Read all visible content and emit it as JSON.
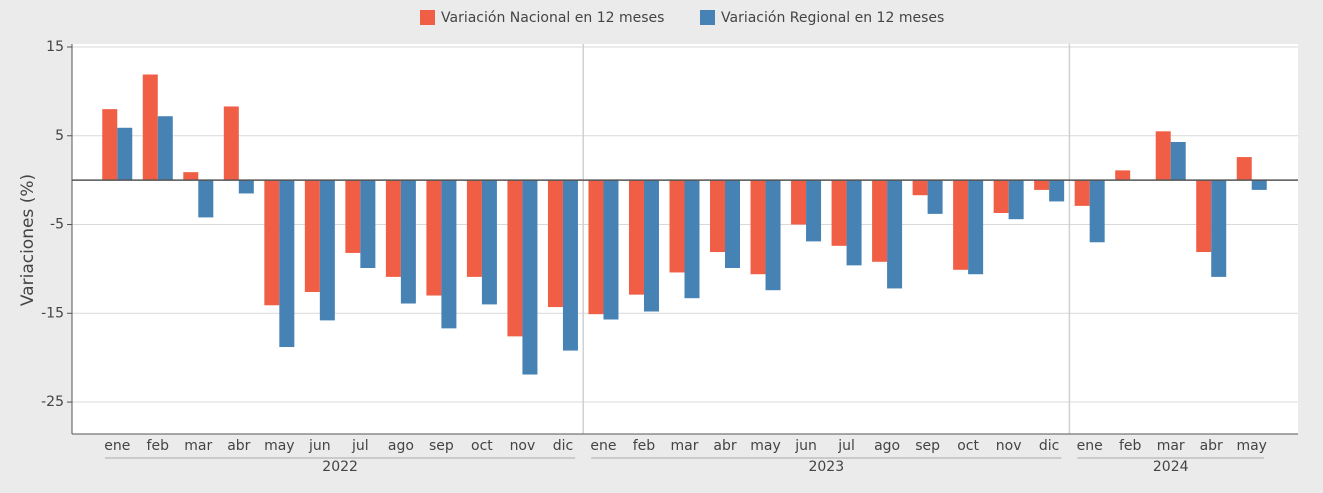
{
  "chart_data": {
    "type": "bar",
    "y_label": "Variaciones (%)",
    "category_groups": [
      {
        "name": "2022",
        "categories": [
          "ene",
          "feb",
          "mar",
          "abr",
          "may",
          "jun",
          "jul",
          "ago",
          "sep",
          "oct",
          "nov",
          "dic"
        ]
      },
      {
        "name": "2023",
        "categories": [
          "ene",
          "feb",
          "mar",
          "abr",
          "may",
          "jun",
          "jul",
          "ago",
          "sep",
          "oct",
          "nov",
          "dic"
        ]
      },
      {
        "name": "2024",
        "categories": [
          "ene",
          "feb",
          "mar",
          "abr",
          "may"
        ]
      }
    ],
    "series": [
      {
        "name": "Variación Nacional en 12 meses",
        "color": "#f05f45",
        "values": [
          8.0,
          11.9,
          0.9,
          8.3,
          -14.1,
          -12.6,
          -8.2,
          -10.9,
          -13.0,
          -10.9,
          -17.6,
          -14.3,
          -15.1,
          -12.9,
          -10.4,
          -8.1,
          -10.6,
          -5.0,
          -7.4,
          -9.2,
          -1.7,
          -10.1,
          -3.7,
          -1.1,
          -2.9,
          1.1,
          5.5,
          -8.1,
          2.6
        ]
      },
      {
        "name": "Variación Regional en 12 meses",
        "color": "#4682b4",
        "values": [
          5.9,
          7.2,
          -4.2,
          -1.5,
          -18.8,
          -15.8,
          -9.9,
          -13.9,
          -16.7,
          -14.0,
          -21.9,
          -19.2,
          -15.7,
          -14.8,
          -13.3,
          -9.9,
          -12.4,
          -6.9,
          -9.6,
          -12.2,
          -3.8,
          -10.6,
          -4.4,
          -2.4,
          -7.0,
          null,
          4.3,
          -10.9,
          -1.1
        ]
      }
    ],
    "ylim": [
      -28.6,
      15
    ],
    "yticks": [
      -25,
      -15,
      -5,
      5,
      15
    ],
    "grid": true,
    "legend": "top"
  }
}
